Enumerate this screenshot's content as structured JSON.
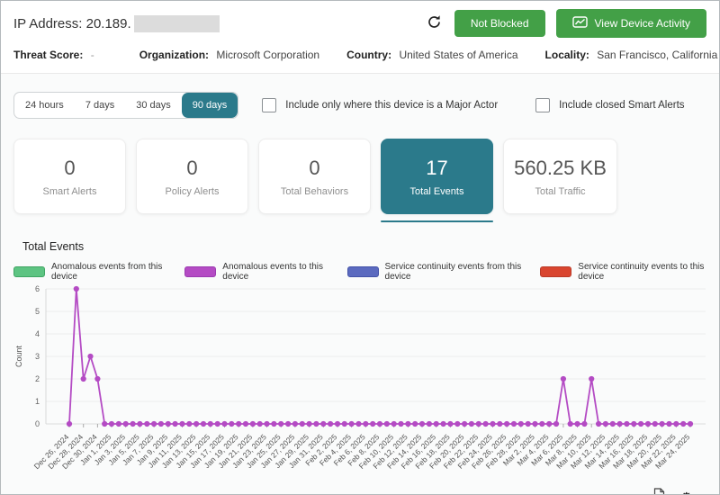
{
  "header": {
    "ip_label": "IP Address: 20.189.",
    "not_blocked_label": "Not Blocked",
    "view_activity_label": "View Device Activity"
  },
  "info": {
    "threat_score_label": "Threat Score:",
    "threat_score_value": "-",
    "organization_label": "Organization:",
    "organization_value": "Microsoft Corporation",
    "country_label": "Country:",
    "country_value": "United States of America",
    "locality_label": "Locality:",
    "locality_value": "San Francisco, California"
  },
  "filters": {
    "ranges": [
      "24 hours",
      "7 days",
      "30 days",
      "90 days"
    ],
    "selected_range": "90 days",
    "checkbox_major_actor": "Include only where this device is a Major Actor",
    "checkbox_closed_alerts": "Include closed Smart Alerts"
  },
  "stats": [
    {
      "value": "0",
      "label": "Smart Alerts",
      "selected": false
    },
    {
      "value": "0",
      "label": "Policy Alerts",
      "selected": false
    },
    {
      "value": "0",
      "label": "Total Behaviors",
      "selected": false
    },
    {
      "value": "17",
      "label": "Total Events",
      "selected": true
    },
    {
      "value": "560.25 KB",
      "label": "Total Traffic",
      "selected": false
    }
  ],
  "colors": {
    "accent_teal": "#2b7a8b",
    "button_green": "#43a047",
    "line_purple": "#b44bc4"
  },
  "chart_data": {
    "type": "line",
    "title": "Total Events",
    "xlabel": "",
    "ylabel": "Count",
    "ylim": [
      0,
      6
    ],
    "yticks": [
      0,
      1,
      2,
      3,
      4,
      5,
      6
    ],
    "grid": true,
    "legend_position": "top-center",
    "legend": [
      {
        "label": "Anomalous events from this device",
        "color": "#5dc482",
        "border": "#3fa563"
      },
      {
        "label": "Anomalous events to this device",
        "color": "#b44bc4",
        "border": "#9b3ab0"
      },
      {
        "label": "Service continuity events from this device",
        "color": "#5b6abf",
        "border": "#4352a8"
      },
      {
        "label": "Service continuity events to this device",
        "color": "#d9452f",
        "border": "#b93a28"
      }
    ],
    "series_name": "Anomalous events to this device",
    "line_color": "#b44bc4",
    "label_every": 2,
    "x": [
      "Dec 26, 2024",
      "Dec 27, 2024",
      "Dec 28, 2024",
      "Dec 29, 2024",
      "Dec 30, 2024",
      "Dec 31, 2024",
      "Jan 1, 2025",
      "Jan 2, 2025",
      "Jan 3, 2025",
      "Jan 4, 2025",
      "Jan 5, 2025",
      "Jan 6, 2025",
      "Jan 7, 2025",
      "Jan 8, 2025",
      "Jan 9, 2025",
      "Jan 10, 2025",
      "Jan 11, 2025",
      "Jan 12, 2025",
      "Jan 13, 2025",
      "Jan 14, 2025",
      "Jan 15, 2025",
      "Jan 16, 2025",
      "Jan 17, 2025",
      "Jan 18, 2025",
      "Jan 19, 2025",
      "Jan 20, 2025",
      "Jan 21, 2025",
      "Jan 22, 2025",
      "Jan 23, 2025",
      "Jan 24, 2025",
      "Jan 25, 2025",
      "Jan 26, 2025",
      "Jan 27, 2025",
      "Jan 28, 2025",
      "Jan 29, 2025",
      "Jan 30, 2025",
      "Jan 31, 2025",
      "Feb 1, 2025",
      "Feb 2, 2025",
      "Feb 3, 2025",
      "Feb 4, 2025",
      "Feb 5, 2025",
      "Feb 6, 2025",
      "Feb 7, 2025",
      "Feb 8, 2025",
      "Feb 9, 2025",
      "Feb 10, 2025",
      "Feb 11, 2025",
      "Feb 12, 2025",
      "Feb 13, 2025",
      "Feb 14, 2025",
      "Feb 15, 2025",
      "Feb 16, 2025",
      "Feb 17, 2025",
      "Feb 18, 2025",
      "Feb 19, 2025",
      "Feb 20, 2025",
      "Feb 21, 2025",
      "Feb 22, 2025",
      "Feb 23, 2025",
      "Feb 24, 2025",
      "Feb 25, 2025",
      "Feb 26, 2025",
      "Feb 27, 2025",
      "Feb 28, 2025",
      "Mar 1, 2025",
      "Mar 2, 2025",
      "Mar 3, 2025",
      "Mar 4, 2025",
      "Mar 5, 2025",
      "Mar 6, 2025",
      "Mar 7, 2025",
      "Mar 8, 2025",
      "Mar 9, 2025",
      "Mar 10, 2025",
      "Mar 11, 2025",
      "Mar 12, 2025",
      "Mar 13, 2025",
      "Mar 14, 2025",
      "Mar 15, 2025",
      "Mar 16, 2025",
      "Mar 17, 2025",
      "Mar 18, 2025",
      "Mar 19, 2025",
      "Mar 20, 2025",
      "Mar 21, 2025",
      "Mar 22, 2025",
      "Mar 23, 2025",
      "Mar 24, 2025"
    ],
    "values": [
      0,
      6,
      2,
      3,
      2,
      0,
      0,
      0,
      0,
      0,
      0,
      0,
      0,
      0,
      0,
      0,
      0,
      0,
      0,
      0,
      0,
      0,
      0,
      0,
      0,
      0,
      0,
      0,
      0,
      0,
      0,
      0,
      0,
      0,
      0,
      0,
      0,
      0,
      0,
      0,
      0,
      0,
      0,
      0,
      0,
      0,
      0,
      0,
      0,
      0,
      0,
      0,
      0,
      0,
      0,
      0,
      0,
      0,
      0,
      0,
      0,
      0,
      0,
      0,
      0,
      0,
      0,
      0,
      0,
      0,
      2,
      0,
      0,
      0,
      2,
      0,
      0,
      0,
      0,
      0,
      0,
      0,
      0,
      0,
      0,
      0,
      0,
      0,
      0
    ]
  },
  "footer": {
    "export_icon": "export-report",
    "settings_icon": "chart-settings"
  }
}
